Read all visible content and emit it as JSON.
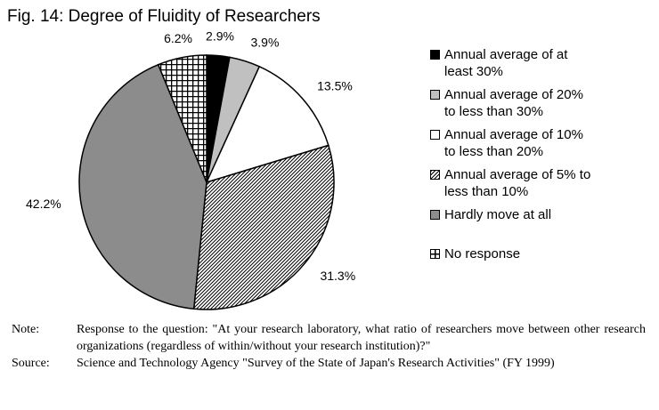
{
  "title": "Fig. 14: Degree of Fluidity of Researchers",
  "chart_data": {
    "type": "pie",
    "title": "Fig. 14: Degree of Fluidity of Researchers",
    "slices": [
      {
        "label": "Annual average of at least 30%",
        "value": 2.9,
        "display": "2.9%",
        "pattern": "black"
      },
      {
        "label": "Annual average of 20% to less than 30%",
        "value": 3.9,
        "display": "3.9%",
        "pattern": "lightgray"
      },
      {
        "label": "Annual average of 10% to less than 20%",
        "value": 13.5,
        "display": "13.5%",
        "pattern": "white"
      },
      {
        "label": "Annual average of 5% to less than 10%",
        "value": 31.3,
        "display": "31.3%",
        "pattern": "diagonal"
      },
      {
        "label": "Hardly move at all",
        "value": 42.2,
        "display": "42.2%",
        "pattern": "darkgray"
      },
      {
        "label": "No response",
        "value": 6.2,
        "display": "6.2%",
        "pattern": "checker"
      }
    ],
    "legend_position": "right"
  },
  "legend": [
    {
      "lines": [
        "Annual average of at",
        "least 30%"
      ],
      "pattern": "black"
    },
    {
      "lines": [
        "Annual average of 20%",
        "to less than 30%"
      ],
      "pattern": "lightgray"
    },
    {
      "lines": [
        "Annual average of 10%",
        "to less than 20%"
      ],
      "pattern": "white"
    },
    {
      "lines": [
        "Annual average of 5% to",
        "less than 10%"
      ],
      "pattern": "diagonal"
    },
    {
      "lines": [
        "Hardly move at all"
      ],
      "pattern": "darkgray"
    },
    {
      "lines": [
        "No response"
      ],
      "pattern": "checker"
    }
  ],
  "colors": {
    "black": "#000000",
    "lightgray": "#c0c0c0",
    "white": "#ffffff",
    "darkgray": "#8c8c8c"
  },
  "note": {
    "label": "Note:",
    "text": "Response to the question: \"At your research laboratory, what ratio of researchers move between other research organizations (regardless of within/without your research institution)?\""
  },
  "source": {
    "label": "Source:",
    "text": "Science and Technology Agency \"Survey of the State of Japan's Research Activities\" (FY 1999)"
  }
}
